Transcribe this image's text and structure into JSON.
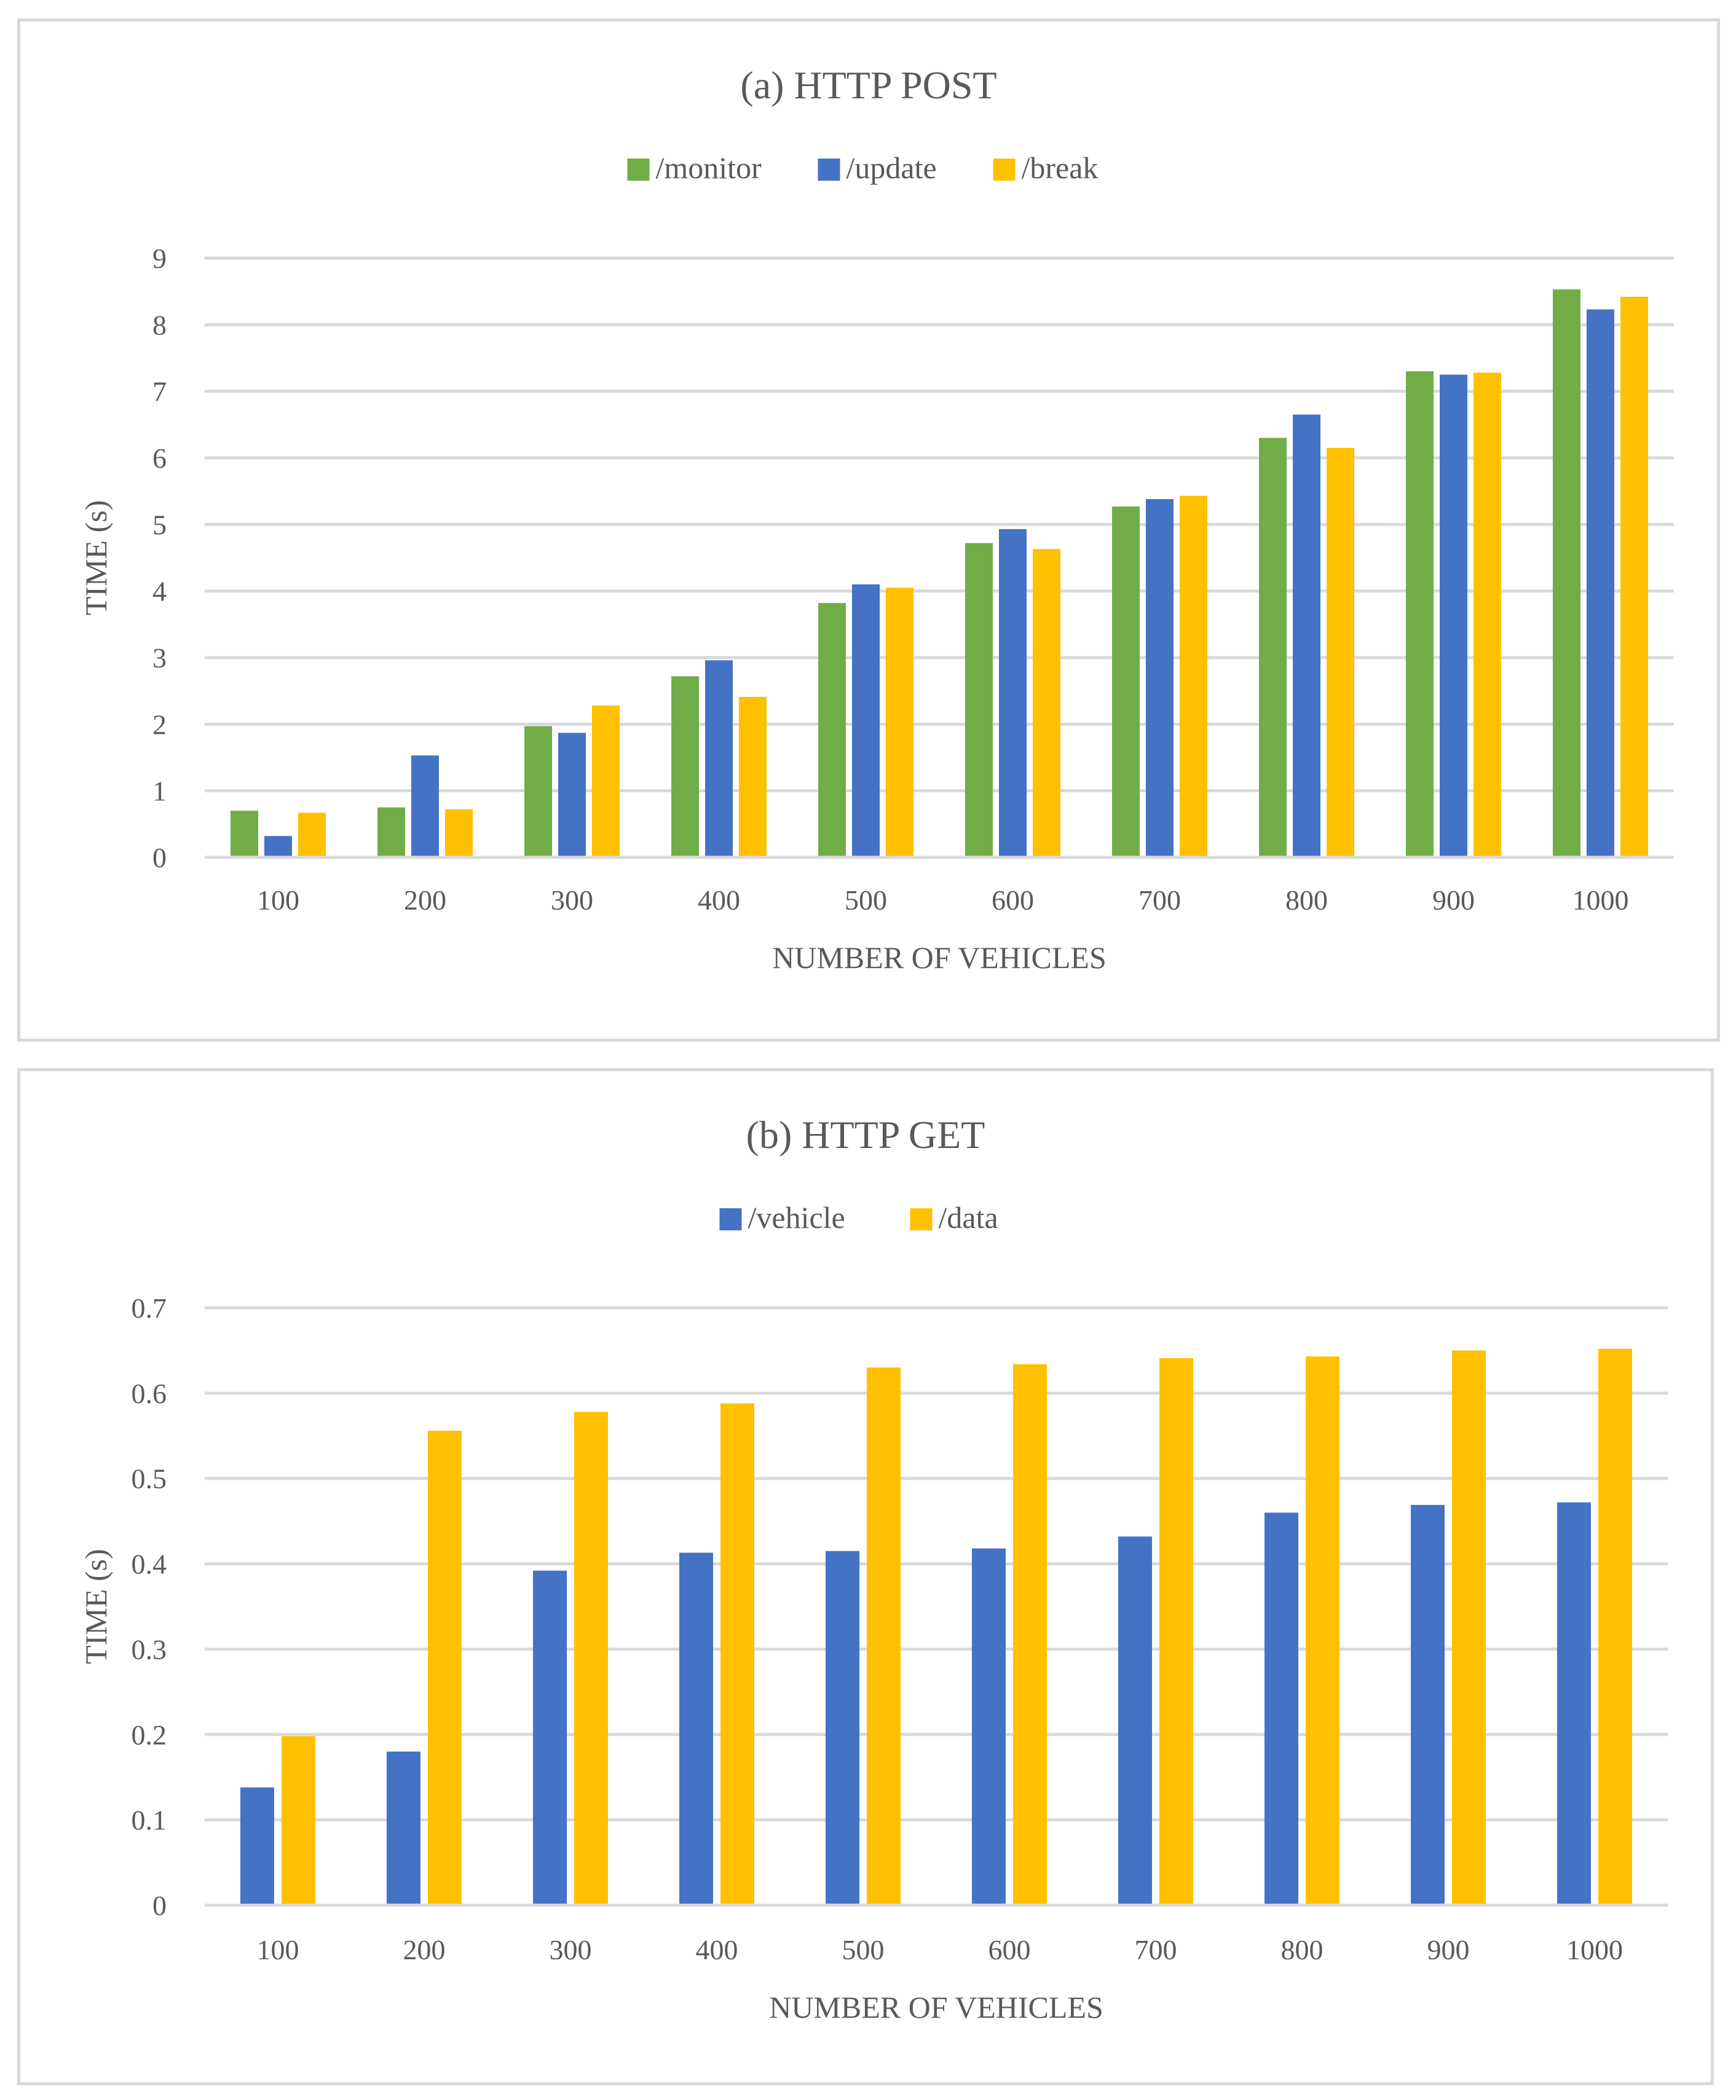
{
  "chart_data": [
    {
      "type": "bar",
      "title": "(a) HTTP POST",
      "xlabel": "NUMBER OF VEHICLES",
      "ylabel": "TIME (s)",
      "ylim": [
        0,
        9
      ],
      "yticks": [
        "0",
        "1",
        "2",
        "3",
        "4",
        "5",
        "6",
        "7",
        "8",
        "9"
      ],
      "categories": [
        "100",
        "200",
        "300",
        "400",
        "500",
        "600",
        "700",
        "800",
        "900",
        "1000"
      ],
      "legend_position": "top",
      "grid": true,
      "series": [
        {
          "name": "/monitor",
          "color": "#70ad47",
          "values": [
            0.7,
            0.75,
            1.97,
            2.72,
            3.82,
            4.72,
            5.27,
            6.3,
            7.3,
            8.53
          ]
        },
        {
          "name": "/update",
          "color": "#4472c4",
          "values": [
            0.32,
            1.53,
            1.87,
            2.96,
            4.1,
            4.93,
            5.38,
            6.65,
            7.25,
            8.23
          ]
        },
        {
          "name": "/break",
          "color": "#ffc000",
          "values": [
            0.67,
            0.72,
            2.28,
            2.41,
            4.05,
            4.63,
            5.43,
            6.15,
            7.28,
            8.42
          ]
        }
      ]
    },
    {
      "type": "bar",
      "title": "(b) HTTP GET",
      "xlabel": "NUMBER OF VEHICLES",
      "ylabel": "TIME (s)",
      "ylim": [
        0,
        0.7
      ],
      "yticks": [
        "0",
        "0.1",
        "0.2",
        "0.3",
        "0.4",
        "0.5",
        "0.6",
        "0.7"
      ],
      "categories": [
        "100",
        "200",
        "300",
        "400",
        "500",
        "600",
        "700",
        "800",
        "900",
        "1000"
      ],
      "legend_position": "top",
      "grid": true,
      "series": [
        {
          "name": "/vehicle",
          "color": "#4472c4",
          "values": [
            0.138,
            0.18,
            0.392,
            0.413,
            0.415,
            0.418,
            0.432,
            0.46,
            0.469,
            0.472
          ]
        },
        {
          "name": "/data",
          "color": "#ffc000",
          "values": [
            0.198,
            0.556,
            0.578,
            0.588,
            0.63,
            0.634,
            0.641,
            0.643,
            0.65,
            0.652
          ]
        }
      ]
    }
  ]
}
